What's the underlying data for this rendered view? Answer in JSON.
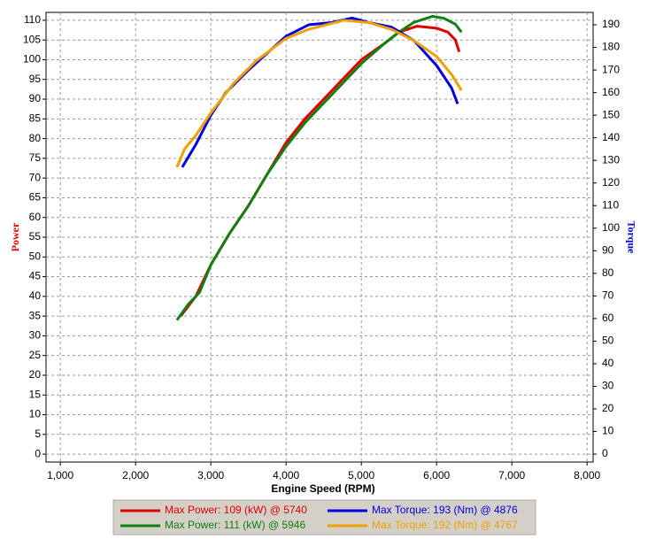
{
  "chart_data": {
    "type": "line",
    "x_label": "Engine Speed (RPM)",
    "y_label": "Power",
    "y2_label": "Torque",
    "y_label_color": "#e00000",
    "y2_label_color": "#0000e0",
    "xlim": [
      810,
      8080
    ],
    "ylim": [
      -2,
      112
    ],
    "y2lim": [
      -3.5,
      195.5
    ],
    "grid": true,
    "legend": "bottom",
    "xticks": [
      {
        "value": 1000,
        "label": "1,000"
      },
      {
        "value": 2000,
        "label": "2,000"
      },
      {
        "value": 3000,
        "label": "3,000"
      },
      {
        "value": 4000,
        "label": "4,000"
      },
      {
        "value": 5000,
        "label": "5,000"
      },
      {
        "value": 6000,
        "label": "6,000"
      },
      {
        "value": 7000,
        "label": "7,000"
      },
      {
        "value": 8000,
        "label": "8,000"
      }
    ],
    "yticks": [
      0,
      5,
      10,
      15,
      20,
      25,
      30,
      35,
      40,
      45,
      50,
      55,
      60,
      65,
      70,
      75,
      80,
      85,
      90,
      95,
      100,
      105,
      110
    ],
    "y2ticks": [
      0,
      10,
      20,
      30,
      40,
      50,
      60,
      70,
      80,
      90,
      100,
      110,
      120,
      130,
      140,
      150,
      160,
      170,
      180,
      190
    ],
    "series": [
      {
        "name": "Max Power: 109 (kW) @ 5740",
        "color": "#e00000",
        "axis": "y",
        "x": [
          2600,
          2800,
          3000,
          3250,
          3500,
          3750,
          4000,
          4250,
          4500,
          4750,
          5000,
          5300,
          5500,
          5740,
          6000,
          6150,
          6250,
          6300
        ],
        "values": [
          35,
          40,
          48,
          56,
          63,
          71,
          79,
          85,
          90,
          95,
          100,
          104,
          107,
          108.5,
          108,
          107,
          105,
          102
        ]
      },
      {
        "name": "Max Power: 111 (kW) @ 5946",
        "color": "#108010",
        "axis": "y",
        "x": [
          2550,
          2700,
          2850,
          3000,
          3250,
          3500,
          3750,
          4000,
          4250,
          4500,
          4750,
          5000,
          5300,
          5500,
          5700,
          5946,
          6100,
          6250,
          6330
        ],
        "values": [
          34,
          38,
          41,
          48,
          56,
          63,
          71,
          78,
          84,
          89,
          94,
          99,
          104,
          107,
          109.5,
          111,
          110.5,
          109,
          107
        ]
      },
      {
        "name": "Max Torque: 193 (Nm) @ 4876",
        "color": "#0000e0",
        "axis": "y2",
        "x": [
          2620,
          2800,
          3000,
          3200,
          3500,
          3800,
          4000,
          4300,
          4600,
          4876,
          5100,
          5400,
          5700,
          6000,
          6200,
          6280
        ],
        "values": [
          127,
          137,
          150,
          160,
          170,
          179,
          185,
          190,
          191,
          193,
          191,
          189,
          183,
          172,
          162,
          155
        ]
      },
      {
        "name": "Max Torque: 192 (Nm) @ 4767",
        "color": "#f0a000",
        "axis": "y2",
        "x": [
          2550,
          2650,
          2800,
          3000,
          3300,
          3600,
          4000,
          4300,
          4767,
          5100,
          5400,
          5700,
          6000,
          6200,
          6330
        ],
        "values": [
          127,
          135,
          141,
          151,
          164,
          174,
          184,
          188,
          192,
          191,
          188,
          183,
          176,
          168,
          161
        ]
      }
    ]
  }
}
